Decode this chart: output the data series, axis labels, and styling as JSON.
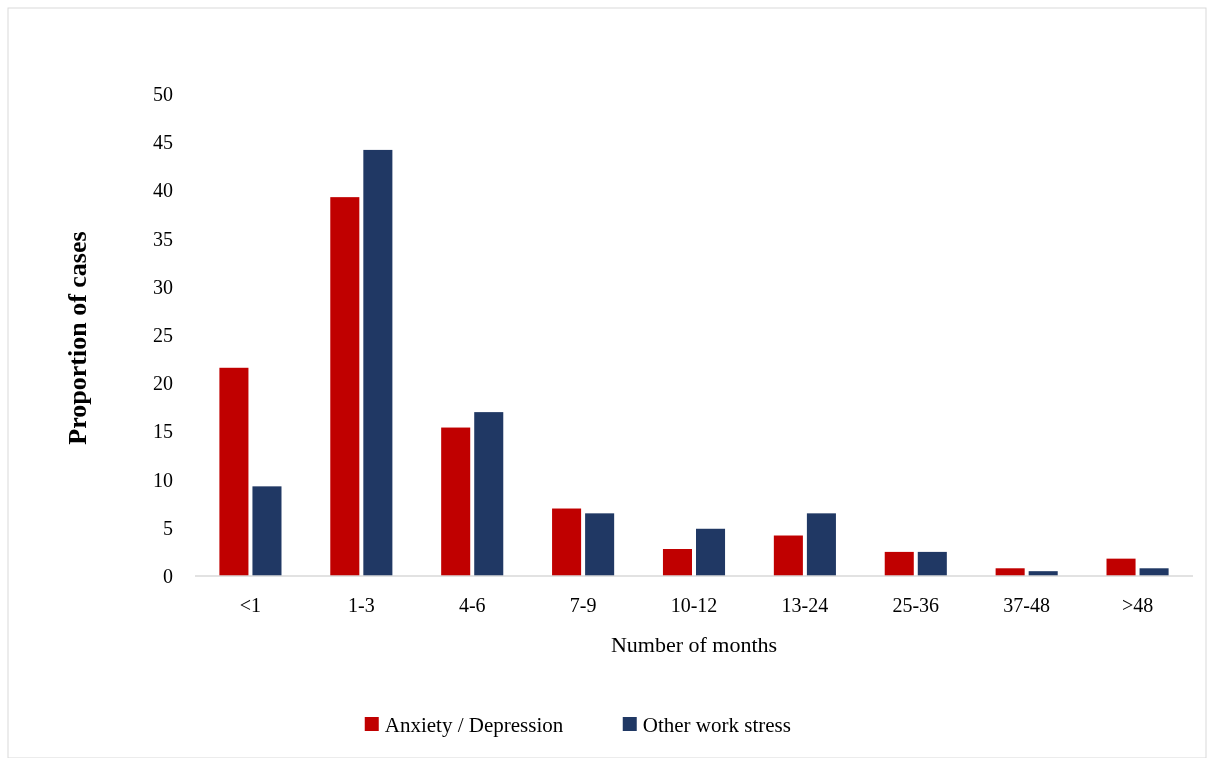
{
  "chart_data": {
    "type": "bar",
    "xlabel": "Number of months",
    "ylabel": "Proportion of cases",
    "categories": [
      "<1",
      "1-3",
      "4-6",
      "7-9",
      "10-12",
      "13-24",
      "25-36",
      "37-48",
      ">48"
    ],
    "series": [
      {
        "name": "Anxiety / Depression",
        "color": "#c00000",
        "values": [
          21.6,
          39.3,
          15.4,
          7.0,
          2.8,
          4.2,
          2.5,
          0.8,
          1.8
        ]
      },
      {
        "name": "Other work stress",
        "color": "#203864",
        "values": [
          9.3,
          44.2,
          17.0,
          6.5,
          4.9,
          6.5,
          2.5,
          0.5,
          0.8
        ]
      }
    ],
    "ylim": [
      0,
      50
    ],
    "yticks": [
      0,
      5,
      10,
      15,
      20,
      25,
      30,
      35,
      40,
      45,
      50
    ],
    "grid": false,
    "legend": "bottom"
  }
}
